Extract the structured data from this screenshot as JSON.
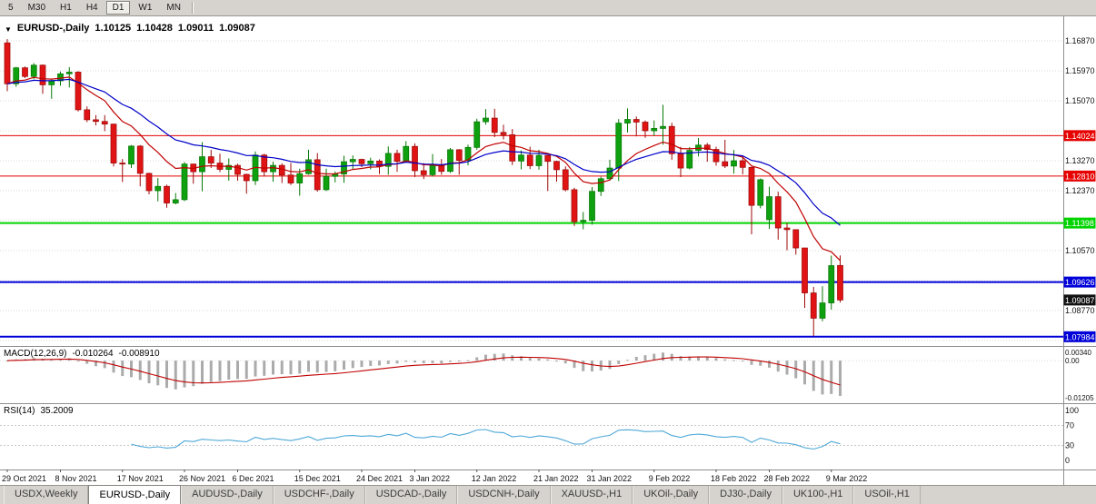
{
  "toolbar": {
    "timeframes": [
      "5",
      "M30",
      "H1",
      "H4",
      "D1",
      "W1",
      "MN"
    ],
    "active": "D1"
  },
  "chart_data": {
    "type": "candlestick",
    "title": {
      "marker": "▼",
      "symbol": "EURUSD-,Daily",
      "open": "1.10125",
      "high": "1.10428",
      "low": "1.09011",
      "close": "1.09087"
    },
    "price_axis": {
      "labels": [
        {
          "text": "1.16870",
          "price": 1.1687
        },
        {
          "text": "1.15970",
          "price": 1.1597
        },
        {
          "text": "1.15070",
          "price": 1.1507
        },
        {
          "text": "1.13270",
          "price": 1.1327
        },
        {
          "text": "1.12370",
          "price": 1.1237
        },
        {
          "text": "1.10570",
          "price": 1.1057
        },
        {
          "text": "1.08770",
          "price": 1.0877
        }
      ],
      "grid_prices": [
        1.1687,
        1.1597,
        1.1507,
        1.1417,
        1.1327,
        1.1237,
        1.1147,
        1.1057,
        1.0967,
        1.0877,
        1.0787
      ],
      "current": {
        "text": "1.09087",
        "price": 1.09087,
        "bg": "#111111"
      }
    },
    "hlines": [
      {
        "text": "1.14024",
        "price": 1.14024,
        "color": "#E60000",
        "width": 1
      },
      {
        "text": "1.12810",
        "price": 1.1281,
        "color": "#E60000",
        "width": 1
      },
      {
        "text": "1.11398",
        "price": 1.11398,
        "color": "#00D400",
        "width": 2
      },
      {
        "text": "1.09626",
        "price": 1.09626,
        "color": "#0000D8",
        "width": 2
      },
      {
        "text": "1.07984",
        "price": 1.07984,
        "color": "#0000D8",
        "width": 2
      }
    ],
    "moving_averages": [
      {
        "period": 10,
        "color": "#C00000"
      },
      {
        "period": 21,
        "color": "#0000C8"
      }
    ],
    "x_axis": {
      "labels": [
        {
          "text": "29 Oct 2021",
          "i": 0
        },
        {
          "text": "8 Nov 2021",
          "i": 6
        },
        {
          "text": "17 Nov 2021",
          "i": 13
        },
        {
          "text": "26 Nov 2021",
          "i": 20
        },
        {
          "text": "6 Dec 2021",
          "i": 26
        },
        {
          "text": "15 Dec 2021",
          "i": 33
        },
        {
          "text": "24 Dec 2021",
          "i": 40
        },
        {
          "text": "3 Jan 2022",
          "i": 46
        },
        {
          "text": "12 Jan 2022",
          "i": 53
        },
        {
          "text": "21 Jan 2022",
          "i": 60
        },
        {
          "text": "31 Jan 2022",
          "i": 66
        },
        {
          "text": "9 Feb 2022",
          "i": 73
        },
        {
          "text": "18 Feb 2022",
          "i": 80
        },
        {
          "text": "28 Feb 2022",
          "i": 86
        },
        {
          "text": "9 Mar 2022",
          "i": 93
        }
      ]
    },
    "candles": [
      [
        1.1681,
        1.1692,
        1.1536,
        1.1558
      ],
      [
        1.1558,
        1.1609,
        1.1549,
        1.1606
      ],
      [
        1.1606,
        1.161,
        1.1575,
        1.158
      ],
      [
        1.158,
        1.162,
        1.1572,
        1.1614
      ],
      [
        1.1614,
        1.1616,
        1.1528,
        1.1555
      ],
      [
        1.1555,
        1.1573,
        1.1513,
        1.1567
      ],
      [
        1.1567,
        1.1595,
        1.1552,
        1.1588
      ],
      [
        1.1588,
        1.1608,
        1.1547,
        1.1593
      ],
      [
        1.1593,
        1.1596,
        1.1475,
        1.148
      ],
      [
        1.148,
        1.149,
        1.1443,
        1.145
      ],
      [
        1.145,
        1.1464,
        1.1433,
        1.1445
      ],
      [
        1.1445,
        1.1464,
        1.1416,
        1.1437
      ],
      [
        1.1437,
        1.1438,
        1.131,
        1.132
      ],
      [
        1.132,
        1.1332,
        1.1263,
        1.1317
      ],
      [
        1.1317,
        1.1374,
        1.1305,
        1.1371
      ],
      [
        1.1371,
        1.1374,
        1.125,
        1.1289
      ],
      [
        1.1289,
        1.1291,
        1.1226,
        1.1237
      ],
      [
        1.1237,
        1.1275,
        1.1205,
        1.125
      ],
      [
        1.125,
        1.1255,
        1.1186,
        1.12
      ],
      [
        1.12,
        1.123,
        1.1196,
        1.121
      ],
      [
        1.121,
        1.1323,
        1.1206,
        1.1317
      ],
      [
        1.1317,
        1.1318,
        1.1258,
        1.1294
      ],
      [
        1.1294,
        1.1383,
        1.1235,
        1.1339
      ],
      [
        1.1339,
        1.136,
        1.1305,
        1.132
      ],
      [
        1.132,
        1.1348,
        1.1293,
        1.1301
      ],
      [
        1.1301,
        1.1334,
        1.1267,
        1.1313
      ],
      [
        1.1313,
        1.1318,
        1.1267,
        1.1286
      ],
      [
        1.1286,
        1.1288,
        1.1228,
        1.1267
      ],
      [
        1.1267,
        1.1355,
        1.1254,
        1.1344
      ],
      [
        1.1344,
        1.1348,
        1.128,
        1.1294
      ],
      [
        1.1294,
        1.1324,
        1.1264,
        1.1313
      ],
      [
        1.1313,
        1.1319,
        1.126,
        1.1284
      ],
      [
        1.1284,
        1.132,
        1.1254,
        1.126
      ],
      [
        1.126,
        1.1303,
        1.1222,
        1.1288
      ],
      [
        1.1288,
        1.136,
        1.1285,
        1.133
      ],
      [
        1.133,
        1.135,
        1.1234,
        1.124
      ],
      [
        1.124,
        1.1303,
        1.1236,
        1.128
      ],
      [
        1.128,
        1.1295,
        1.1262,
        1.1287
      ],
      [
        1.1287,
        1.1342,
        1.1261,
        1.1324
      ],
      [
        1.1324,
        1.1343,
        1.1301,
        1.1331
      ],
      [
        1.1331,
        1.1333,
        1.1308,
        1.1318
      ],
      [
        1.1318,
        1.1336,
        1.1301,
        1.1326
      ],
      [
        1.1326,
        1.1331,
        1.1287,
        1.131
      ],
      [
        1.131,
        1.137,
        1.1285,
        1.1349
      ],
      [
        1.1349,
        1.136,
        1.1294,
        1.1325
      ],
      [
        1.1325,
        1.1386,
        1.1321,
        1.137
      ],
      [
        1.137,
        1.1379,
        1.1278,
        1.1297
      ],
      [
        1.1297,
        1.132,
        1.1272,
        1.1285
      ],
      [
        1.1285,
        1.1347,
        1.128,
        1.1313
      ],
      [
        1.1313,
        1.1332,
        1.1285,
        1.1295
      ],
      [
        1.1295,
        1.1365,
        1.129,
        1.136
      ],
      [
        1.136,
        1.1362,
        1.1285,
        1.1328
      ],
      [
        1.1328,
        1.1375,
        1.1313,
        1.1367
      ],
      [
        1.1367,
        1.1453,
        1.136,
        1.1444
      ],
      [
        1.1444,
        1.1482,
        1.1435,
        1.1455
      ],
      [
        1.1455,
        1.1483,
        1.1398,
        1.1412
      ],
      [
        1.1412,
        1.1435,
        1.1391,
        1.1405
      ],
      [
        1.1405,
        1.1422,
        1.1314,
        1.1326
      ],
      [
        1.1326,
        1.1358,
        1.1301,
        1.1344
      ],
      [
        1.1344,
        1.1369,
        1.1302,
        1.1312
      ],
      [
        1.1312,
        1.136,
        1.13,
        1.1343
      ],
      [
        1.1343,
        1.1344,
        1.1236,
        1.1325
      ],
      [
        1.1325,
        1.1327,
        1.1264,
        1.13
      ],
      [
        1.13,
        1.131,
        1.1235,
        1.124
      ],
      [
        1.124,
        1.1246,
        1.1131,
        1.1144
      ],
      [
        1.1144,
        1.1173,
        1.1121,
        1.1148
      ],
      [
        1.1148,
        1.1248,
        1.1135,
        1.1235
      ],
      [
        1.1235,
        1.1279,
        1.1221,
        1.1273
      ],
      [
        1.1273,
        1.133,
        1.1267,
        1.1305
      ],
      [
        1.1305,
        1.1452,
        1.1266,
        1.144
      ],
      [
        1.144,
        1.1484,
        1.1412,
        1.1451
      ],
      [
        1.1451,
        1.146,
        1.14,
        1.1443
      ],
      [
        1.1443,
        1.1448,
        1.1396,
        1.1417
      ],
      [
        1.1417,
        1.1448,
        1.1402,
        1.1424
      ],
      [
        1.1424,
        1.1495,
        1.1375,
        1.143
      ],
      [
        1.143,
        1.1441,
        1.133,
        1.1348
      ],
      [
        1.1348,
        1.1369,
        1.1278,
        1.1305
      ],
      [
        1.1305,
        1.1368,
        1.1301,
        1.1358
      ],
      [
        1.1358,
        1.1395,
        1.134,
        1.1374
      ],
      [
        1.1374,
        1.138,
        1.1324,
        1.1361
      ],
      [
        1.1361,
        1.1369,
        1.1312,
        1.1324
      ],
      [
        1.1324,
        1.139,
        1.1305,
        1.1311
      ],
      [
        1.1311,
        1.1359,
        1.1288,
        1.1327
      ],
      [
        1.1327,
        1.1342,
        1.1286,
        1.1307
      ],
      [
        1.1307,
        1.1309,
        1.1106,
        1.1193
      ],
      [
        1.1193,
        1.1274,
        1.1184,
        1.127
      ],
      [
        1.115,
        1.1249,
        1.1122,
        1.1219
      ],
      [
        1.1219,
        1.1234,
        1.109,
        1.1125
      ],
      [
        1.1125,
        1.114,
        1.1058,
        1.112
      ],
      [
        1.112,
        1.1121,
        1.1045,
        1.1065
      ],
      [
        1.1065,
        1.1066,
        1.0885,
        1.093
      ],
      [
        1.093,
        1.0948,
        1.08,
        1.0854
      ],
      [
        1.0854,
        1.095,
        1.0845,
        1.09
      ],
      [
        1.09,
        1.1042,
        1.088,
        1.1012
      ],
      [
        1.10125,
        1.10428,
        1.09011,
        1.09087
      ]
    ]
  },
  "macd": {
    "label": "MACD(12,26,9)",
    "value_main": "-0.010264",
    "value_signal": "-0.008910",
    "fast": 12,
    "slow": 26,
    "signal": 9,
    "axis_top": "0.00340",
    "axis_zero": "0.00",
    "axis_bottom": "-0.01205",
    "scale_max": 0.0034,
    "scale_min": -0.01205,
    "hist_color": "#ABABAB",
    "signal_color": "#C00000"
  },
  "rsi": {
    "label": "RSI(14)",
    "value": "35.2009",
    "period": 14,
    "levels": [
      70,
      30
    ],
    "axis_labels": [
      "100",
      "70",
      "30",
      "0"
    ],
    "color": "#4FA8D8"
  },
  "tabs": [
    {
      "label": "USDX,Weekly",
      "active": false
    },
    {
      "label": "EURUSD-,Daily",
      "active": true
    },
    {
      "label": "AUDUSD-,Daily",
      "active": false
    },
    {
      "label": "USDCHF-,Daily",
      "active": false
    },
    {
      "label": "USDCAD-,Daily",
      "active": false
    },
    {
      "label": "USDCNH-,Daily",
      "active": false
    },
    {
      "label": "XAUUSD-,H1",
      "active": false
    },
    {
      "label": "UKOil-,Daily",
      "active": false
    },
    {
      "label": "DJ30-,Daily",
      "active": false
    },
    {
      "label": "UK100-,H1",
      "active": false
    },
    {
      "label": "USOil-,H1",
      "active": false
    }
  ],
  "colors": {
    "candle_up": "#0FA00F",
    "candle_up_border": "#067806",
    "candle_down": "#E01414",
    "candle_down_border": "#9E0A0A",
    "grid": "#DADADA",
    "pane_border": "#8E8E8E",
    "axis_text": "#111111"
  }
}
